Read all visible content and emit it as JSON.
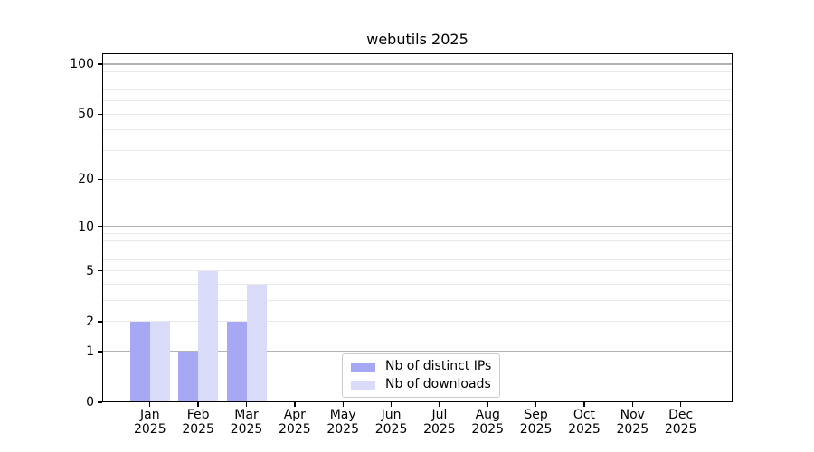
{
  "chart_data": {
    "type": "bar",
    "title": "webutils 2025",
    "x_categories": [
      "Jan",
      "Feb",
      "Mar",
      "Apr",
      "May",
      "Jun",
      "Jul",
      "Aug",
      "Sep",
      "Oct",
      "Nov",
      "Dec"
    ],
    "x_year": "2025",
    "series": [
      {
        "name": "Nb of distinct IPs",
        "color": "#a7a8f3",
        "values": [
          2,
          1,
          2,
          0,
          0,
          0,
          0,
          0,
          0,
          0,
          0,
          0
        ]
      },
      {
        "name": "Nb of downloads",
        "color": "#dadbf8",
        "values": [
          2,
          5,
          4,
          0,
          0,
          0,
          0,
          0,
          0,
          0,
          0,
          0
        ]
      }
    ],
    "y_scale": "log1p",
    "ylim": [
      0,
      116
    ],
    "y_ticks": [
      100,
      50,
      20,
      10,
      5,
      2,
      1,
      0
    ],
    "gridlines": {
      "major": [
        1,
        10,
        100
      ],
      "minor": [
        2,
        3,
        4,
        5,
        6,
        7,
        8,
        9,
        20,
        30,
        40,
        50,
        60,
        70,
        80,
        90
      ]
    },
    "legend_position": "inside-lower-center",
    "grid": "on",
    "colors": {
      "major_grid": "#b2b2b2",
      "minor_grid": "#e9e9e9",
      "axis": "#000000",
      "text": "#000000",
      "legend_border": "#cbcbcb",
      "legend_bg": "#ffffff"
    }
  }
}
